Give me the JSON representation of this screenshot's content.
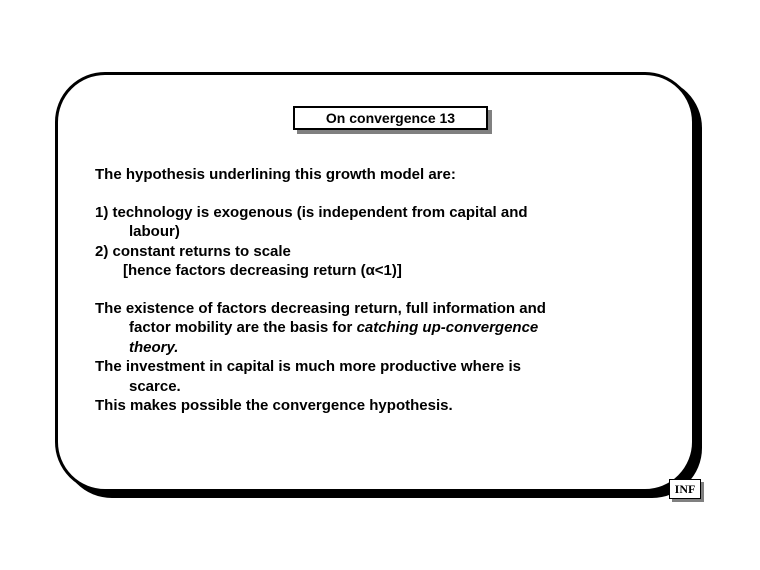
{
  "title": "On convergence 13",
  "intro": "The hypothesis underlining this growth model are:",
  "point1": "1) technology is exogenous (is independent from capital and",
  "point1_cont": "labour)",
  "point2": "2) constant returns to scale",
  "point2_cont": "[hence factors decreasing return (α<1)]",
  "para1_a": "The existence of factors decreasing return, full information and",
  "para1_b": "factor mobility are the basis for ",
  "para1_italic_a": "catching up-convergence",
  "para1_italic_b": "theory.",
  "para2_a": "The investment in capital is much more productive where is",
  "para2_b": "scarce.",
  "para3": "This makes possible the convergence hypothesis.",
  "badge": "INF"
}
